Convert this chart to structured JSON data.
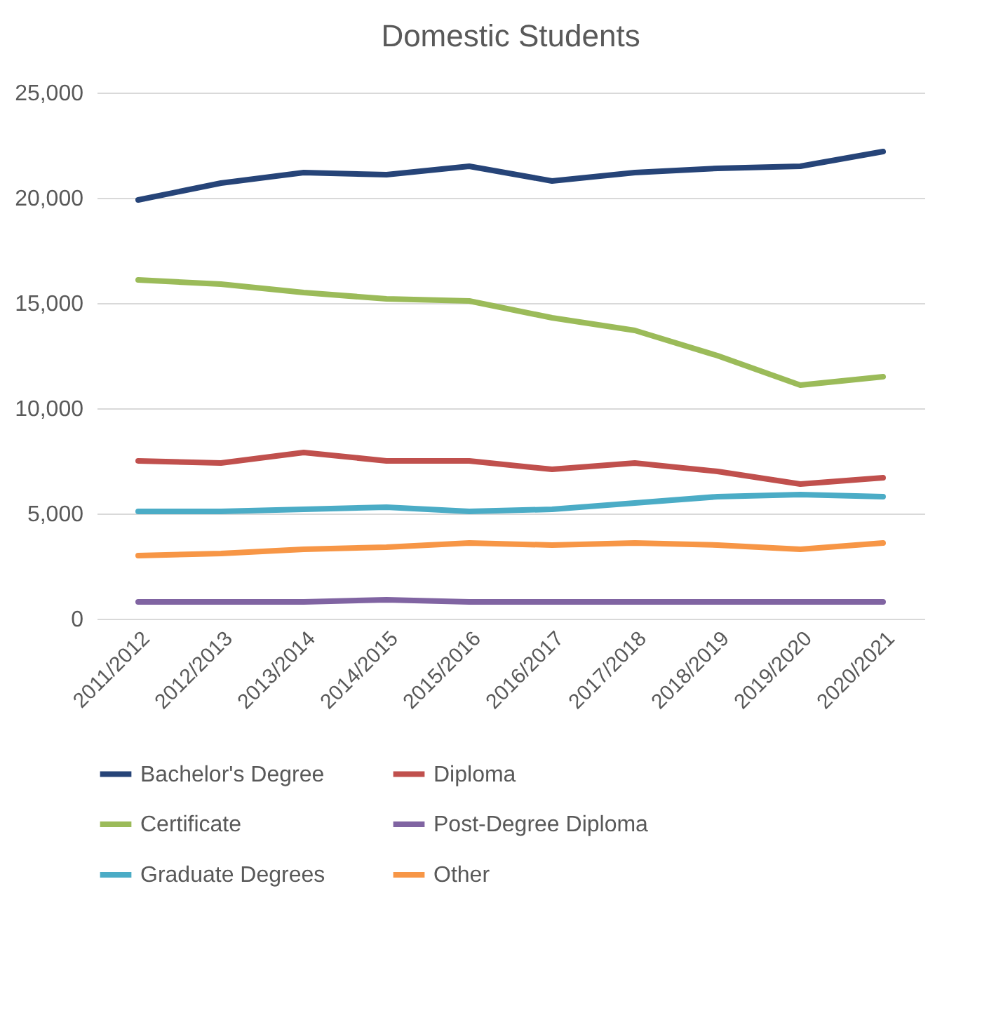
{
  "chart_data": {
    "type": "line",
    "title": "Domestic Students",
    "categories": [
      "2011/2012",
      "2012/2013",
      "2013/2014",
      "2014/2015",
      "2015/2016",
      "2016/2017",
      "2017/2018",
      "2018/2019",
      "2019/2020",
      "2020/2021"
    ],
    "series": [
      {
        "name": "Bachelor's Degree",
        "color": "#264478",
        "values": [
          19900,
          20700,
          21200,
          21100,
          21500,
          20800,
          21200,
          21400,
          21500,
          22200
        ]
      },
      {
        "name": "Diploma",
        "color": "#c0504d",
        "values": [
          7500,
          7400,
          7900,
          7500,
          7500,
          7100,
          7400,
          7000,
          6400,
          6700
        ]
      },
      {
        "name": "Certificate",
        "color": "#9bbb59",
        "values": [
          16100,
          15900,
          15500,
          15200,
          15100,
          14300,
          13700,
          12500,
          11100,
          11500
        ]
      },
      {
        "name": "Post-Degree Diploma",
        "color": "#8064a2",
        "values": [
          800,
          800,
          800,
          900,
          800,
          800,
          800,
          800,
          800,
          800
        ]
      },
      {
        "name": "Graduate Degrees",
        "color": "#4bacc6",
        "values": [
          5100,
          5100,
          5200,
          5300,
          5100,
          5200,
          5500,
          5800,
          5900,
          5800
        ]
      },
      {
        "name": "Other",
        "color": "#f79646",
        "values": [
          3000,
          3100,
          3300,
          3400,
          3600,
          3500,
          3600,
          3500,
          3300,
          3600
        ]
      }
    ],
    "ylim": [
      0,
      25000
    ],
    "yticks": [
      0,
      {
        "value": 5000,
        "label": "5,000"
      },
      {
        "value": 10000,
        "label": "10,000"
      },
      {
        "value": 15000,
        "label": "15,000"
      },
      {
        "value": 20000,
        "label": "20,000"
      },
      {
        "value": 25000,
        "label": "25,000"
      }
    ],
    "grid": "y",
    "legend": "bottom",
    "line_style": "solid"
  }
}
